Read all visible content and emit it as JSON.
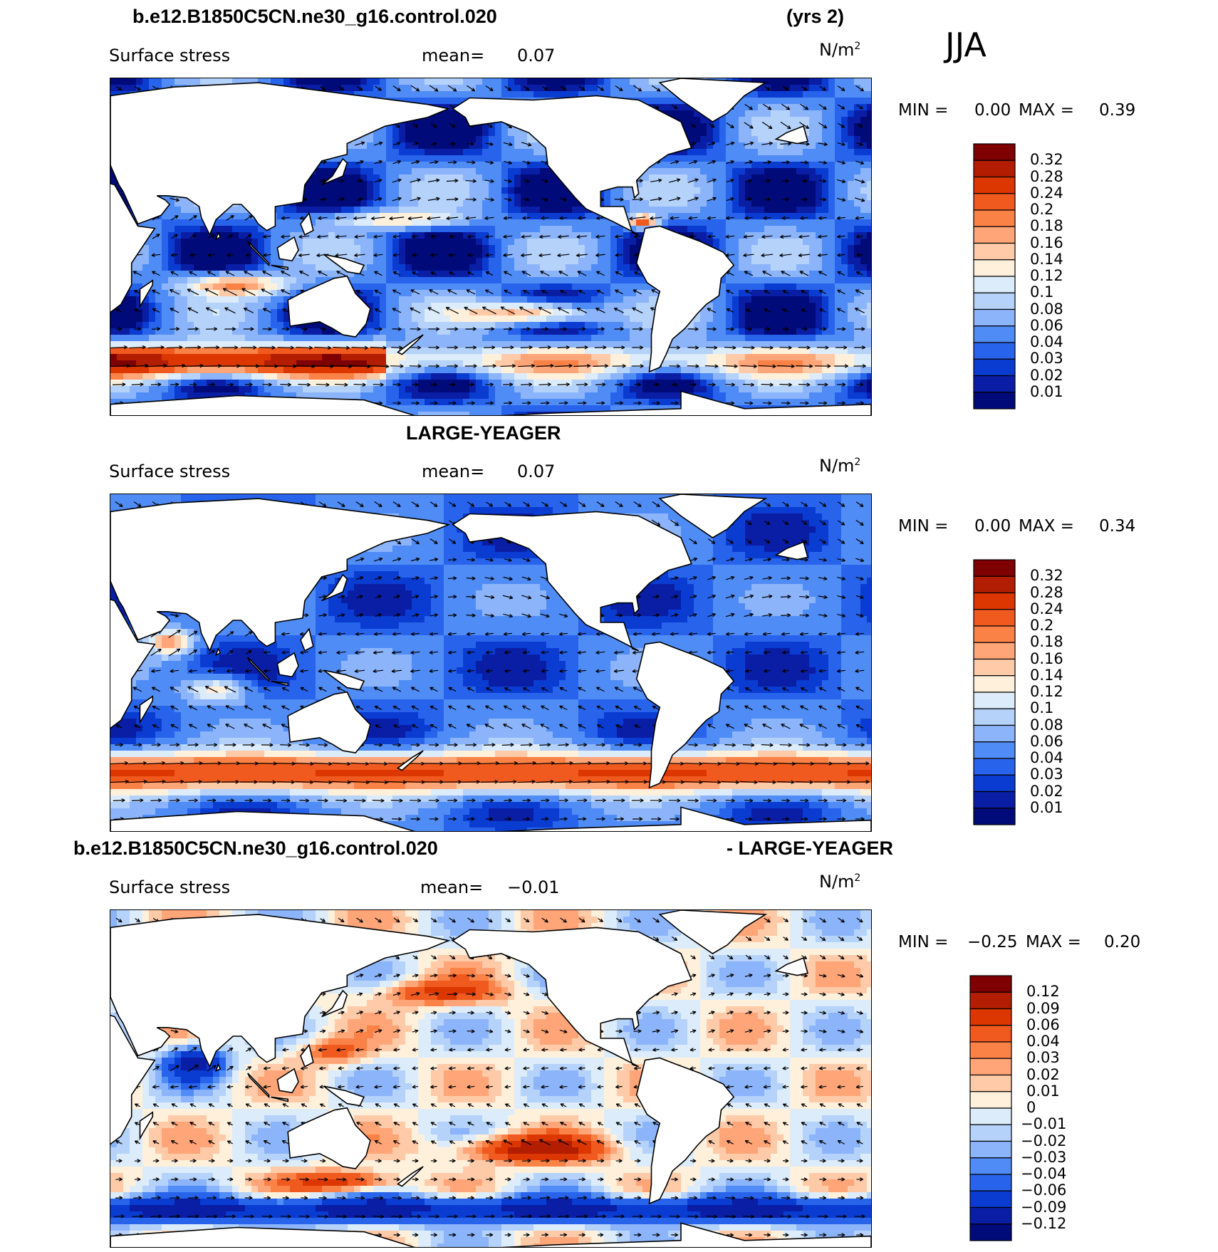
{
  "season": "JJA",
  "panels": [
    {
      "id": "control",
      "title_left": "b.e12.B1850C5CN.ne30_g16.control.020",
      "title_right": "(yrs 2)",
      "title_center": "",
      "variable": "Surface stress",
      "mean_label": "mean=",
      "mean_value": "0.07",
      "units": "N/m",
      "units_sup": "2",
      "min_label": "MIN =",
      "min_value": "0.00",
      "max_label": "MAX =",
      "max_value": "0.39",
      "colorbar": {
        "labels": [
          "0.32",
          "0.28",
          "0.24",
          "0.2",
          "0.18",
          "0.16",
          "0.14",
          "0.12",
          "0.1",
          "0.08",
          "0.06",
          "0.04",
          "0.03",
          "0.02",
          "0.01"
        ],
        "colors": [
          "#7f0000",
          "#b41e00",
          "#dc3700",
          "#f05a1e",
          "#fa8246",
          "#ffa578",
          "#ffcaa8",
          "#fff0dc",
          "#dcecfa",
          "#b4d2fa",
          "#8cb4fa",
          "#508cf5",
          "#2864eb",
          "#0a3cd2",
          "#0a1ea5",
          "#000a78"
        ]
      }
    },
    {
      "id": "obs",
      "title_left": "",
      "title_right": "",
      "title_center": "LARGE-YEAGER",
      "variable": "Surface stress",
      "mean_label": "mean=",
      "mean_value": "0.07",
      "units": "N/m",
      "units_sup": "2",
      "min_label": "MIN =",
      "min_value": "0.00",
      "max_label": "MAX =",
      "max_value": "0.34",
      "colorbar": {
        "labels": [
          "0.32",
          "0.28",
          "0.24",
          "0.2",
          "0.18",
          "0.16",
          "0.14",
          "0.12",
          "0.1",
          "0.08",
          "0.06",
          "0.04",
          "0.03",
          "0.02",
          "0.01"
        ],
        "colors": [
          "#7f0000",
          "#b41e00",
          "#dc3700",
          "#f05a1e",
          "#fa8246",
          "#ffa578",
          "#ffcaa8",
          "#fff0dc",
          "#dcecfa",
          "#b4d2fa",
          "#8cb4fa",
          "#508cf5",
          "#2864eb",
          "#0a3cd2",
          "#0a1ea5",
          "#000a78"
        ]
      }
    },
    {
      "id": "diff",
      "title_left": "b.e12.B1850C5CN.ne30_g16.control.020",
      "title_right": "- LARGE-YEAGER",
      "title_center": "",
      "variable": "Surface stress",
      "mean_label": "mean=",
      "mean_value": "−0.01",
      "units": "N/m",
      "units_sup": "2",
      "min_label": "MIN =",
      "min_value": "−0.25",
      "max_label": "MAX =",
      "max_value": "0.20",
      "colorbar": {
        "labels": [
          "0.12",
          "0.09",
          "0.06",
          "0.04",
          "0.03",
          "0.02",
          "0.01",
          "0",
          "−0.01",
          "−0.02",
          "−0.03",
          "−0.04",
          "−0.06",
          "−0.09",
          "−0.12"
        ],
        "colors": [
          "#7f0000",
          "#b41e00",
          "#dc3700",
          "#f05a1e",
          "#fa8246",
          "#ffa578",
          "#ffcaa8",
          "#fff0dc",
          "#dcecfa",
          "#b4d2fa",
          "#8cb4fa",
          "#508cf5",
          "#2864eb",
          "#0a3cd2",
          "#0a1ea5",
          "#000a78"
        ]
      }
    }
  ]
}
